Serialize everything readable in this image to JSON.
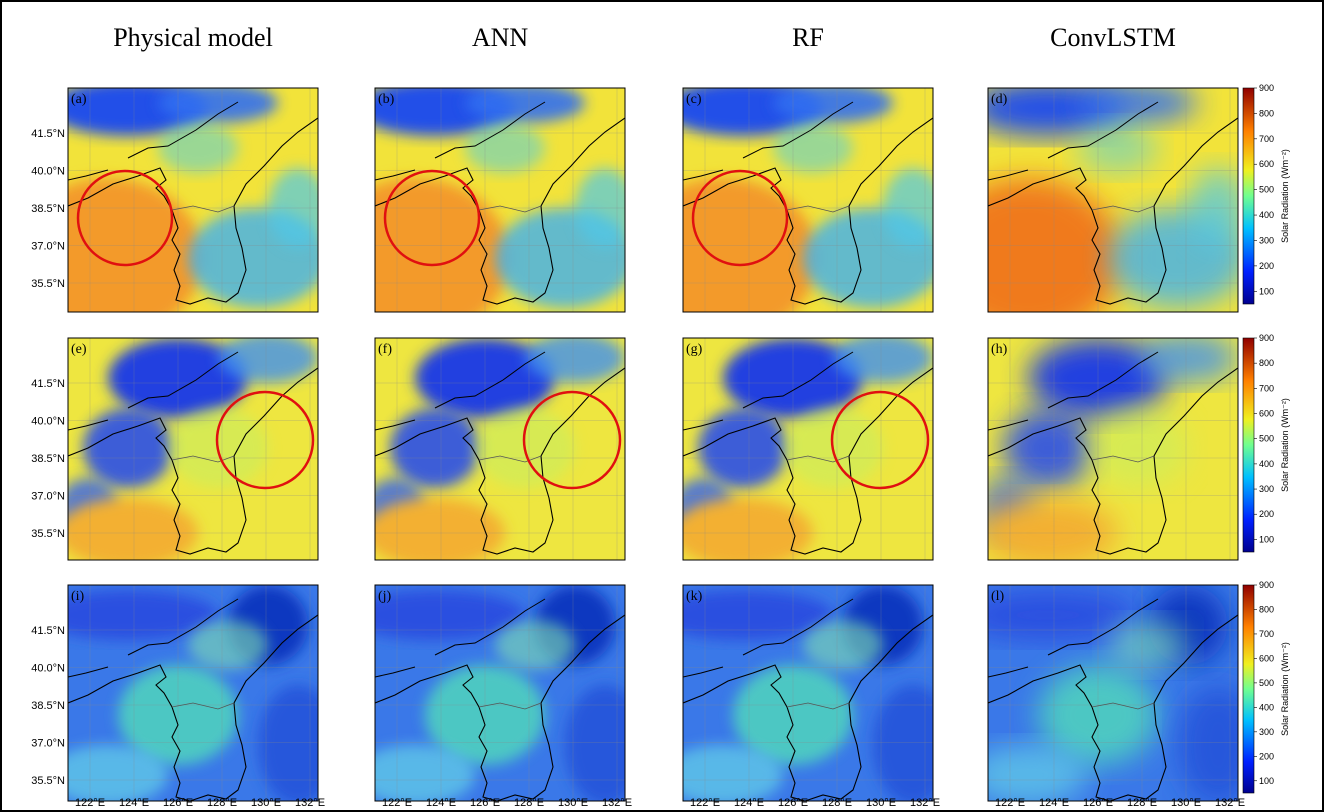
{
  "columns": [
    "Physical model",
    "ANN",
    "RF",
    "ConvLSTM"
  ],
  "panels": [
    "(a)",
    "(b)",
    "(c)",
    "(d)",
    "(e)",
    "(f)",
    "(g)",
    "(h)",
    "(i)",
    "(j)",
    "(k)",
    "(l)"
  ],
  "lat_ticks": [
    "41.5°N",
    "40.0°N",
    "38.5°N",
    "37.0°N",
    "35.5°N"
  ],
  "lon_ticks": [
    "122°E",
    "124°E",
    "126°E",
    "128°E",
    "130°E",
    "132°E"
  ],
  "colorbar": {
    "label": "Solar Radiation (Wm⁻²)",
    "ticks": [
      100,
      200,
      300,
      400,
      500,
      600,
      700,
      800,
      900
    ],
    "range": [
      50,
      900
    ]
  }
}
